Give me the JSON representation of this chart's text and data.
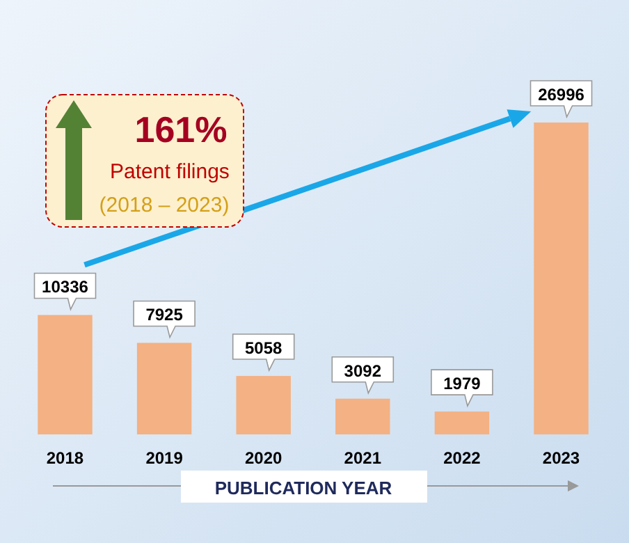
{
  "chart_data": {
    "type": "bar",
    "categories": [
      "2018",
      "2019",
      "2020",
      "2021",
      "2022",
      "2023"
    ],
    "values": [
      10336,
      7925,
      5058,
      3092,
      1979,
      26996
    ],
    "color": "#f4b183",
    "data_labels": true,
    "xlabel": "PUBLICATION YEAR",
    "annotations": [
      "161%",
      "Patent filings",
      "(2018 – 2023)"
    ]
  }
}
